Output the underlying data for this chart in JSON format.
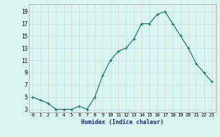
{
  "xlabel": "Humidex (Indice chaleur)",
  "x": [
    0,
    1,
    2,
    3,
    4,
    5,
    6,
    7,
    8,
    9,
    10,
    11,
    12,
    13,
    14,
    15,
    16,
    17,
    18,
    19,
    20,
    21,
    22,
    23
  ],
  "y": [
    5,
    4.5,
    4,
    3,
    3,
    3,
    3.5,
    3,
    5,
    8.5,
    11,
    12.5,
    13,
    14.5,
    17,
    17,
    18.5,
    19,
    17,
    15,
    13,
    10.5,
    9,
    7.5
  ],
  "line_color": "#1a7a6e",
  "bg_color": "#d8f5f0",
  "grid_color_h": "#c8dede",
  "grid_color_v": "#e8cccc",
  "yticks": [
    3,
    5,
    7,
    9,
    11,
    13,
    15,
    17,
    19
  ],
  "xlim": [
    -0.5,
    23.5
  ],
  "ylim": [
    2.5,
    20.2
  ]
}
